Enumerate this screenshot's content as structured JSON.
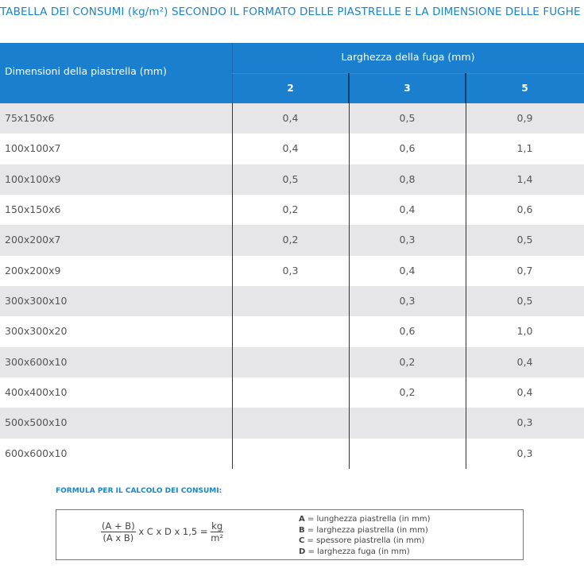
{
  "title": "TABELLA DEI CONSUMI (kg/m²) SECONDO IL FORMATO DELLE PIASTRELLE E LA DIMENSIONE DELLE FUGHE",
  "table": {
    "header": {
      "row_label": "Dimensioni della piastrella (mm)",
      "group_label": "Larghezza della fuga (mm)",
      "columns": [
        "2",
        "3",
        "5"
      ]
    },
    "rows": [
      [
        "75x150x6",
        "0,4",
        "0,5",
        "0,9"
      ],
      [
        "100x100x7",
        "0,4",
        "0,6",
        "1,1"
      ],
      [
        "100x100x9",
        "0,5",
        "0,8",
        "1,4"
      ],
      [
        "150x150x6",
        "0,2",
        "0,4",
        "0,6"
      ],
      [
        "200x200x7",
        "0,2",
        "0,3",
        "0,5"
      ],
      [
        "200x200x9",
        "0,3",
        "0,4",
        "0,7"
      ],
      [
        "300x300x10",
        null,
        "0,3",
        "0,5"
      ],
      [
        "300x300x20",
        null,
        "0,6",
        "1,0"
      ],
      [
        "300x600x10",
        null,
        "0,2",
        "0,4"
      ],
      [
        "400x400x10",
        null,
        "0,2",
        "0,4"
      ],
      [
        "500x500x10",
        null,
        null,
        "0,3"
      ],
      [
        "600x600x10",
        null,
        null,
        "0,3"
      ]
    ]
  },
  "formula": {
    "label": "FORMULA PER IL CALCOLO DEI CONSUMI:",
    "numerator": "(A + B)",
    "denominator": "(A x B)",
    "middle": "x C x D x 1,5 =",
    "unit_numerator": "kg",
    "unit_denominator": "m²",
    "legend": [
      {
        "letter": "A",
        "text": "= lunghezza piastrella (in mm)"
      },
      {
        "letter": "B",
        "text": "= larghezza piastrella (in mm)"
      },
      {
        "letter": "C",
        "text": "= spessore piastrella (in mm)"
      },
      {
        "letter": "D",
        "text": "= larghezza fuga (in mm)"
      }
    ]
  }
}
